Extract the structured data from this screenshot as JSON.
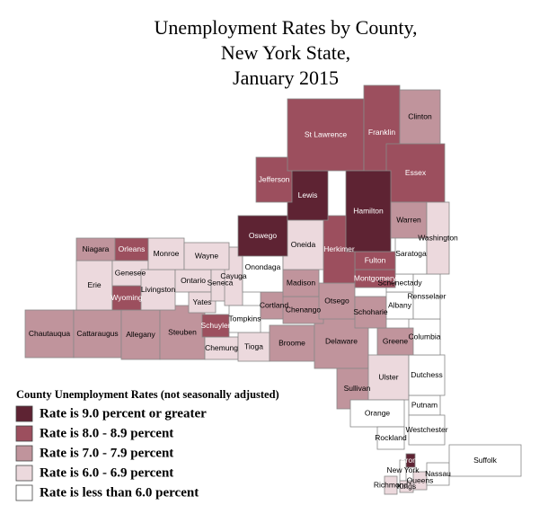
{
  "title": [
    "Unemployment Rates by County,",
    "New York State,",
    "January 2015"
  ],
  "legend": {
    "title": "County Unemployment Rates (not seasonally adjusted)",
    "classes": [
      {
        "label": "Rate is 9.0 percent or greater",
        "color": "#5e2333"
      },
      {
        "label": "Rate is 8.0 - 8.9 percent",
        "color": "#9c4f5e"
      },
      {
        "label": "Rate is 7.0 - 7.9 percent",
        "color": "#c0949c"
      },
      {
        "label": "Rate is 6.0 - 6.9 percent",
        "color": "#ecd9dd"
      },
      {
        "label": "Rate is less than 6.0 percent",
        "color": "#ffffff"
      }
    ]
  },
  "counties": [
    {
      "name": "Chautauqua",
      "class": 2
    },
    {
      "name": "Cattaraugus",
      "class": 2
    },
    {
      "name": "Allegany",
      "class": 2
    },
    {
      "name": "Steuben",
      "class": 2
    },
    {
      "name": "Chemung",
      "class": 3
    },
    {
      "name": "Tioga",
      "class": 3
    },
    {
      "name": "Broome",
      "class": 2
    },
    {
      "name": "Delaware",
      "class": 2
    },
    {
      "name": "Sullivan",
      "class": 2
    },
    {
      "name": "Ulster",
      "class": 3
    },
    {
      "name": "Orange",
      "class": 4
    },
    {
      "name": "Rockland",
      "class": 4
    },
    {
      "name": "Putnam",
      "class": 4
    },
    {
      "name": "Westchester",
      "class": 4
    },
    {
      "name": "Dutchess",
      "class": 4
    },
    {
      "name": "Columbia",
      "class": 4
    },
    {
      "name": "Greene",
      "class": 2
    },
    {
      "name": "Erie",
      "class": 3
    },
    {
      "name": "Wyoming",
      "class": 1
    },
    {
      "name": "Genesee",
      "class": 3
    },
    {
      "name": "Livingston",
      "class": 3
    },
    {
      "name": "Ontario",
      "class": 3
    },
    {
      "name": "Yates",
      "class": 3
    },
    {
      "name": "Schuyler",
      "class": 1
    },
    {
      "name": "Seneca",
      "class": 3
    },
    {
      "name": "Cayuga",
      "class": 3
    },
    {
      "name": "Tompkins",
      "class": 4
    },
    {
      "name": "Cortland",
      "class": 2
    },
    {
      "name": "Onondaga",
      "class": 4
    },
    {
      "name": "Chenango",
      "class": 2
    },
    {
      "name": "Madison",
      "class": 2
    },
    {
      "name": "Otsego",
      "class": 2
    },
    {
      "name": "Schoharie",
      "class": 2
    },
    {
      "name": "Albany",
      "class": 4
    },
    {
      "name": "Schenectady",
      "class": 4
    },
    {
      "name": "Rensselaer",
      "class": 4
    },
    {
      "name": "Saratoga",
      "class": 4
    },
    {
      "name": "Montgomery",
      "class": 1
    },
    {
      "name": "Fulton",
      "class": 1
    },
    {
      "name": "Herkimer",
      "class": 1
    },
    {
      "name": "Oneida",
      "class": 3
    },
    {
      "name": "Oswego",
      "class": 0
    },
    {
      "name": "Lewis",
      "class": 0
    },
    {
      "name": "Jefferson",
      "class": 1
    },
    {
      "name": "St Lawrence",
      "class": 1
    },
    {
      "name": "Franklin",
      "class": 1
    },
    {
      "name": "Clinton",
      "class": 2
    },
    {
      "name": "Essex",
      "class": 1
    },
    {
      "name": "Hamilton",
      "class": 0
    },
    {
      "name": "Warren",
      "class": 2
    },
    {
      "name": "Washington",
      "class": 3
    },
    {
      "name": "Niagara",
      "class": 2
    },
    {
      "name": "Orleans",
      "class": 1
    },
    {
      "name": "Monroe",
      "class": 3
    },
    {
      "name": "Wayne",
      "class": 3
    },
    {
      "name": "Bronx",
      "class": 0
    },
    {
      "name": "New York",
      "class": 4
    },
    {
      "name": "Kings",
      "class": 3
    },
    {
      "name": "Queens",
      "class": 3
    },
    {
      "name": "Richmond",
      "class": 3
    },
    {
      "name": "Nassau",
      "class": 4
    },
    {
      "name": "Suffolk",
      "class": 4
    }
  ]
}
